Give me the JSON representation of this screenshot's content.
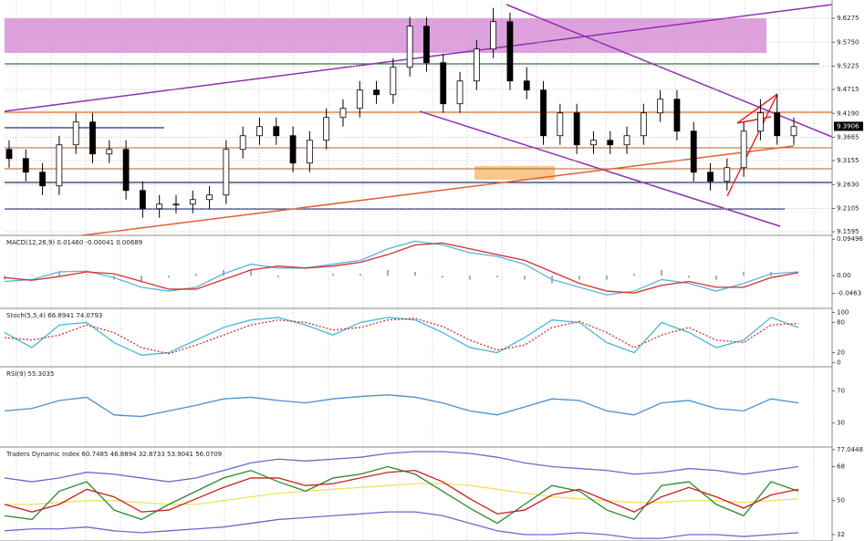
{
  "chart_data": [
    {
      "type": "candlestick",
      "open": [
        9.34,
        9.32,
        9.29,
        9.26,
        9.35,
        9.4,
        9.33,
        9.34,
        9.25,
        9.21,
        9.22,
        9.22,
        9.23,
        9.24,
        9.34,
        9.37,
        9.39,
        9.37,
        9.31,
        9.36,
        9.41,
        9.43,
        9.47,
        9.46,
        9.52,
        9.61,
        9.53,
        9.44,
        9.49,
        9.56,
        9.62,
        9.49,
        9.47,
        9.37,
        9.42,
        9.35,
        9.36,
        9.35,
        9.37,
        9.42,
        9.45,
        9.38,
        9.29,
        9.27,
        9.3,
        9.38,
        9.42,
        9.37
      ],
      "high": [
        9.36,
        9.34,
        9.31,
        9.37,
        9.42,
        9.42,
        9.36,
        9.36,
        9.27,
        9.24,
        9.24,
        9.25,
        9.26,
        9.36,
        9.39,
        9.41,
        9.41,
        9.39,
        9.38,
        9.43,
        9.45,
        9.49,
        9.49,
        9.54,
        9.63,
        9.63,
        9.55,
        9.51,
        9.58,
        9.65,
        9.64,
        9.52,
        9.49,
        9.44,
        9.44,
        9.38,
        9.38,
        9.39,
        9.44,
        9.47,
        9.47,
        9.4,
        9.31,
        9.32,
        9.4,
        9.45,
        9.46,
        9.41
      ],
      "low": [
        9.3,
        9.27,
        9.24,
        9.24,
        9.33,
        9.31,
        9.31,
        9.23,
        9.19,
        9.19,
        9.2,
        9.2,
        9.21,
        9.22,
        9.32,
        9.35,
        9.35,
        9.29,
        9.29,
        9.34,
        9.39,
        9.41,
        9.44,
        9.44,
        9.5,
        9.51,
        9.42,
        9.42,
        9.47,
        9.54,
        9.47,
        9.45,
        9.35,
        9.35,
        9.33,
        9.33,
        9.33,
        9.33,
        9.35,
        9.4,
        9.36,
        9.27,
        9.25,
        9.25,
        9.28,
        9.36,
        9.35,
        9.35
      ],
      "close": [
        9.32,
        9.29,
        9.26,
        9.35,
        9.4,
        9.33,
        9.34,
        9.25,
        9.21,
        9.22,
        9.22,
        9.23,
        9.24,
        9.34,
        9.37,
        9.39,
        9.37,
        9.31,
        9.36,
        9.41,
        9.43,
        9.47,
        9.46,
        9.52,
        9.61,
        9.53,
        9.44,
        9.49,
        9.56,
        9.62,
        9.49,
        9.47,
        9.37,
        9.42,
        9.35,
        9.36,
        9.35,
        9.37,
        9.42,
        9.45,
        9.38,
        9.29,
        9.27,
        9.3,
        9.38,
        9.42,
        9.37,
        9.39
      ],
      "ylim": [
        9.1515,
        9.6675
      ],
      "yticks": [
        9.6275,
        {
          "value": 9.575,
          "label": "9.5750"
        },
        9.5225,
        9.4715,
        {
          "value": 9.419,
          "label": "9.4190"
        },
        9.3665,
        9.3155,
        {
          "value": 9.263,
          "label": "9.2630"
        },
        9.2105,
        9.1595
      ],
      "last_price": 9.3906,
      "grid": true
    },
    {
      "type": "line",
      "title": "MACD(12,26,9) 0.01460 -0.00041 0.00689",
      "ylim": [
        -0.085,
        0.105
      ],
      "yticks": [
        0.09496,
        {
          "value": 0,
          "label": "0.00"
        },
        -0.0463
      ],
      "series": [
        {
          "style": "histogram",
          "color": "#aaaaaa",
          "values": [
            -0.01,
            0.002,
            0.012,
            0.002,
            -0.01,
            -0.015,
            -0.005,
            0.005,
            0.015,
            0.015,
            -0.005,
            0,
            0.005,
            0.005,
            0.015,
            0.01,
            -0.005,
            -0.01,
            -0.005,
            -0.01,
            -0.02,
            -0.01,
            -0.01,
            0.005,
            0.015,
            -0.005,
            -0.01,
            0.01,
            0.01,
            0.002
          ]
        },
        {
          "color": "#5ab4e0",
          "values": [
            -0.015,
            -0.01,
            0.01,
            0.012,
            -0.005,
            -0.03,
            -0.04,
            -0.03,
            0.005,
            0.03,
            0.02,
            0.02,
            0.03,
            0.04,
            0.07,
            0.09,
            0.08,
            0.06,
            0.05,
            0.03,
            -0.01,
            -0.03,
            -0.05,
            -0.04,
            -0.01,
            -0.02,
            -0.04,
            -0.02,
            0.005,
            0.01
          ]
        },
        {
          "color": "#d03030",
          "values": [
            -0.005,
            -0.012,
            -0.002,
            0.01,
            0.005,
            -0.015,
            -0.035,
            -0.035,
            -0.01,
            0.015,
            0.025,
            0.02,
            0.025,
            0.035,
            0.055,
            0.08,
            0.085,
            0.07,
            0.055,
            0.04,
            0.01,
            -0.02,
            -0.04,
            -0.045,
            -0.025,
            -0.015,
            -0.03,
            -0.03,
            -0.005,
            0.008
          ]
        }
      ]
    },
    {
      "type": "line",
      "title": "Stoch(5,5,4) 66.8941 74.0793",
      "ylim": [
        -8,
        108
      ],
      "yticks": [
        100,
        80,
        20,
        0
      ],
      "series": [
        {
          "color": "#4ab8d8",
          "values": [
            60,
            30,
            75,
            80,
            40,
            15,
            20,
            45,
            70,
            85,
            90,
            75,
            55,
            80,
            90,
            85,
            60,
            30,
            20,
            50,
            85,
            80,
            40,
            20,
            80,
            60,
            30,
            45,
            90,
            70
          ]
        },
        {
          "style": "dashed",
          "color": "#d03030",
          "values": [
            50,
            45,
            55,
            75,
            60,
            30,
            18,
            35,
            55,
            75,
            85,
            80,
            65,
            70,
            85,
            88,
            72,
            45,
            25,
            35,
            70,
            82,
            60,
            30,
            55,
            70,
            45,
            40,
            75,
            78
          ]
        }
      ]
    },
    {
      "type": "line",
      "title": "RSI(9) 55.3035",
      "ylim": [
        0,
        100
      ],
      "yticks": [
        70,
        30
      ],
      "series": [
        {
          "color": "#4a90d0",
          "values": [
            45,
            48,
            58,
            62,
            40,
            38,
            45,
            52,
            60,
            62,
            58,
            55,
            60,
            63,
            65,
            62,
            55,
            45,
            40,
            50,
            60,
            58,
            45,
            40,
            55,
            58,
            48,
            45,
            60,
            55
          ]
        }
      ]
    },
    {
      "type": "line",
      "title": "Traders Dynamic Index 60.7485 46.8894 32.8733 53.9041 56.0709",
      "ylim": [
        28.6,
        78.4
      ],
      "yticks": [
        77.0448,
        68,
        50,
        32
      ],
      "series": [
        {
          "color": "#6a6ad0",
          "values": [
            62,
            60,
            62,
            65,
            64,
            62,
            60,
            62,
            66,
            70,
            72,
            71,
            72,
            73,
            75,
            76,
            76,
            75,
            73,
            70,
            68,
            67,
            66,
            64,
            65,
            67,
            66,
            64,
            66,
            68
          ]
        },
        {
          "color": "#6a6ad0",
          "values": [
            34,
            35,
            35,
            36,
            34,
            33,
            34,
            35,
            36,
            38,
            40,
            41,
            42,
            43,
            44,
            44,
            42,
            38,
            34,
            32,
            32,
            33,
            32,
            30,
            30,
            32,
            32,
            31,
            32,
            33
          ]
        },
        {
          "color": "#f0e060",
          "values": [
            48,
            48,
            49,
            50,
            50,
            49,
            48,
            48,
            50,
            52,
            54,
            55,
            56,
            57,
            58,
            59,
            59,
            58,
            56,
            54,
            52,
            51,
            50,
            49,
            49,
            50,
            50,
            49,
            50,
            51
          ]
        },
        {
          "color": "#2a8a2a",
          "values": [
            42,
            40,
            55,
            60,
            45,
            40,
            48,
            55,
            62,
            66,
            60,
            55,
            62,
            64,
            68,
            64,
            55,
            46,
            38,
            48,
            58,
            55,
            45,
            40,
            58,
            60,
            48,
            42,
            60,
            55
          ]
        },
        {
          "color": "#c82020",
          "values": [
            48,
            44,
            48,
            56,
            52,
            44,
            45,
            51,
            57,
            62,
            62,
            58,
            59,
            62,
            65,
            66,
            60,
            51,
            43,
            45,
            53,
            56,
            50,
            44,
            52,
            57,
            52,
            46,
            53,
            56
          ]
        }
      ]
    }
  ]
}
